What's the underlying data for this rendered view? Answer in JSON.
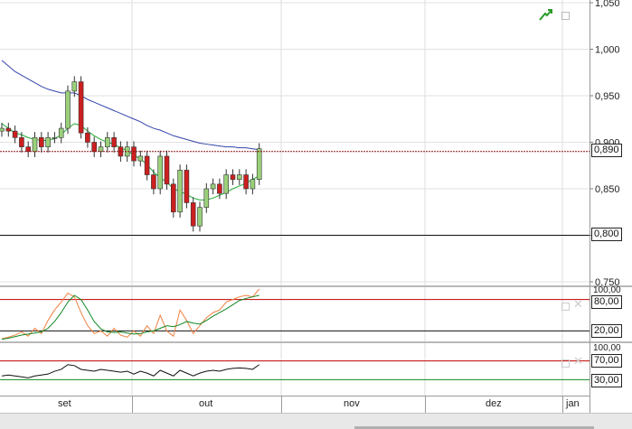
{
  "price_pane": {
    "y_ticks": [
      "1,050",
      "1,000",
      "0,950",
      "0,900",
      "0,850",
      "0,800",
      "0,750"
    ],
    "current_price_label": "0,890",
    "support_price_label": "0,800",
    "icon": "trend-up-icon"
  },
  "stochastic_pane": {
    "y_top_label": "100,00",
    "upper_level_label": "80,00",
    "lower_level_label": "20,00"
  },
  "rsi_pane": {
    "y_top_label": "100,00",
    "upper_level_label": "70,00",
    "lower_level_label": "30,00"
  },
  "x_axis": {
    "months": [
      "set",
      "out",
      "nov",
      "dez",
      "jan"
    ]
  },
  "colors": {
    "bull_candle": "#9ad07a",
    "bear_candle": "#cc1f1f",
    "ma_fast": "#22aa33",
    "ma_slow": "#3344aa",
    "stoch_k": "#f08040",
    "stoch_d": "#118822",
    "level_red": "#c00000"
  },
  "chart_data": [
    {
      "type": "candlestick",
      "ylim": [
        0.75,
        1.05
      ],
      "candles_close": [
        0.915,
        0.912,
        0.905,
        0.895,
        0.89,
        0.905,
        0.895,
        0.905,
        0.905,
        0.915,
        0.955,
        0.965,
        0.91,
        0.9,
        0.89,
        0.895,
        0.905,
        0.895,
        0.885,
        0.895,
        0.88,
        0.885,
        0.865,
        0.85,
        0.885,
        0.855,
        0.825,
        0.87,
        0.835,
        0.81,
        0.83,
        0.85,
        0.855,
        0.845,
        0.865,
        0.86,
        0.865,
        0.85,
        0.86,
        0.893
      ],
      "series": [
        {
          "name": "",
          "type": "line",
          "values": [
            0.92,
            0.915,
            0.91,
            0.908,
            0.905,
            0.903,
            0.902,
            0.902,
            0.904,
            0.908,
            0.915,
            0.92,
            0.918,
            0.912,
            0.907,
            0.903,
            0.9,
            0.898,
            0.894,
            0.891,
            0.886,
            0.882,
            0.876,
            0.868,
            0.862,
            0.857,
            0.85,
            0.847,
            0.844,
            0.84,
            0.838,
            0.838,
            0.84,
            0.843,
            0.846,
            0.85,
            0.853,
            0.856,
            0.86,
            0.864
          ]
        },
        {
          "name": "",
          "type": "line",
          "values": [
            0.988,
            0.982,
            0.976,
            0.972,
            0.968,
            0.964,
            0.96,
            0.957,
            0.955,
            0.953,
            0.953,
            0.953,
            0.95,
            0.946,
            0.943,
            0.94,
            0.937,
            0.934,
            0.931,
            0.928,
            0.925,
            0.922,
            0.918,
            0.915,
            0.913,
            0.91,
            0.907,
            0.905,
            0.903,
            0.901,
            0.899,
            0.898,
            0.897,
            0.896,
            0.895,
            0.895,
            0.894,
            0.894,
            0.893,
            0.892
          ]
        }
      ],
      "levels": [
        0.89,
        0.8
      ]
    },
    {
      "type": "line",
      "ylim": [
        0,
        100
      ],
      "levels": [
        80,
        20
      ],
      "series": [
        {
          "name": "",
          "values": [
            5,
            8,
            12,
            18,
            10,
            25,
            15,
            40,
            60,
            75,
            92,
            85,
            55,
            30,
            15,
            20,
            10,
            25,
            12,
            8,
            20,
            10,
            30,
            15,
            50,
            20,
            10,
            60,
            40,
            15,
            30,
            45,
            55,
            60,
            75,
            80,
            85,
            88,
            85,
            100
          ]
        },
        {
          "name": "",
          "values": [
            4,
            6,
            9,
            12,
            14,
            16,
            18,
            25,
            38,
            55,
            75,
            88,
            80,
            60,
            38,
            24,
            18,
            17,
            18,
            16,
            14,
            15,
            18,
            20,
            25,
            30,
            28,
            32,
            38,
            35,
            33,
            40,
            48,
            55,
            62,
            70,
            78,
            82,
            85,
            88
          ]
        }
      ]
    },
    {
      "type": "line",
      "ylim": [
        0,
        100
      ],
      "levels": [
        70,
        30
      ],
      "series": [
        {
          "name": "",
          "values": [
            38,
            40,
            38,
            36,
            34,
            38,
            40,
            42,
            48,
            52,
            62,
            60,
            52,
            50,
            48,
            52,
            50,
            48,
            46,
            48,
            42,
            48,
            44,
            38,
            50,
            44,
            38,
            50,
            44,
            38,
            44,
            48,
            50,
            48,
            52,
            54,
            55,
            54,
            52,
            62
          ]
        }
      ]
    }
  ]
}
